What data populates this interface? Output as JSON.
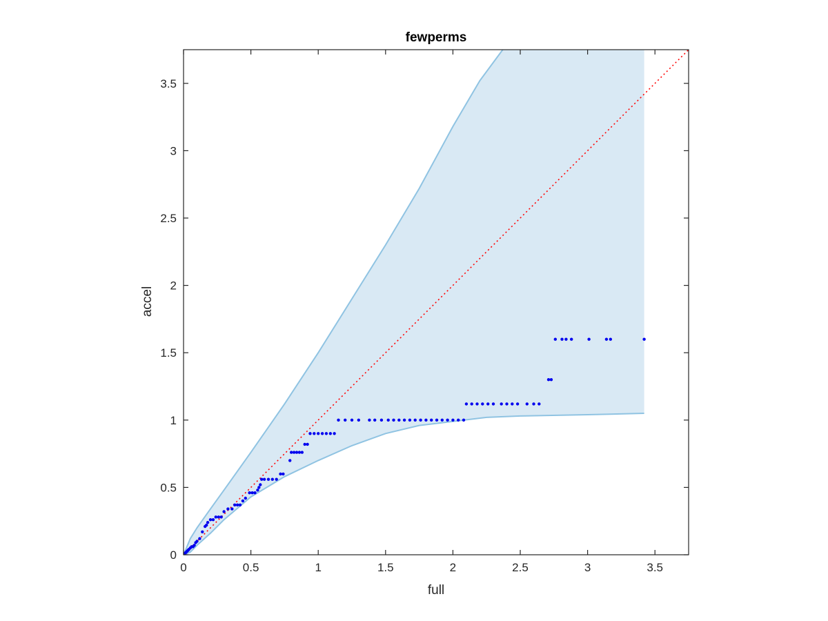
{
  "chart_data": {
    "type": "scatter",
    "title": "fewperms",
    "xlabel": "full",
    "ylabel": "accel",
    "xlim": [
      0,
      3.75
    ],
    "ylim": [
      0,
      3.75
    ],
    "xticks": [
      0,
      0.5,
      1,
      1.5,
      2,
      2.5,
      3,
      3.5
    ],
    "yticks": [
      0,
      0.5,
      1,
      1.5,
      2,
      2.5,
      3,
      3.5
    ],
    "xtick_labels": [
      "0",
      "0.5",
      "1",
      "1.5",
      "2",
      "2.5",
      "3",
      "3.5"
    ],
    "ytick_labels": [
      "0",
      "0.5",
      "1",
      "1.5",
      "2",
      "2.5",
      "3",
      "3.5"
    ],
    "grid": false,
    "colors": {
      "points": "#0000ee",
      "band_fill": "#d9e9f4",
      "band_edge": "#8fc3e2",
      "identity_line": "#ff0000",
      "axes": "#262626"
    },
    "band": {
      "upper": [
        [
          0,
          0
        ],
        [
          0.05,
          0.12
        ],
        [
          0.1,
          0.2
        ],
        [
          0.2,
          0.34
        ],
        [
          0.3,
          0.48
        ],
        [
          0.5,
          0.76
        ],
        [
          0.75,
          1.12
        ],
        [
          1,
          1.5
        ],
        [
          1.25,
          1.9
        ],
        [
          1.5,
          2.3
        ],
        [
          1.75,
          2.72
        ],
        [
          2,
          3.18
        ],
        [
          2.2,
          3.52
        ],
        [
          2.37,
          3.75
        ],
        [
          3.42,
          3.75
        ]
      ],
      "lower": [
        [
          0,
          0
        ],
        [
          0.05,
          0.02
        ],
        [
          0.1,
          0.07
        ],
        [
          0.2,
          0.16
        ],
        [
          0.3,
          0.26
        ],
        [
          0.5,
          0.43
        ],
        [
          0.75,
          0.58
        ],
        [
          1,
          0.7
        ],
        [
          1.25,
          0.81
        ],
        [
          1.5,
          0.9
        ],
        [
          1.75,
          0.96
        ],
        [
          2,
          0.99
        ],
        [
          2.25,
          1.02
        ],
        [
          2.5,
          1.03
        ],
        [
          3,
          1.04
        ],
        [
          3.42,
          1.05
        ]
      ]
    },
    "identity_line": [
      [
        0,
        0
      ],
      [
        3.75,
        3.75
      ]
    ],
    "series": [
      {
        "points": [
          [
            0.003,
            0.003
          ],
          [
            0.006,
            0.006
          ],
          [
            0.01,
            0.01
          ],
          [
            0.015,
            0.015
          ],
          [
            0.02,
            0.02
          ],
          [
            0.025,
            0.025
          ],
          [
            0.03,
            0.03
          ],
          [
            0.035,
            0.035
          ],
          [
            0.04,
            0.04
          ],
          [
            0.05,
            0.05
          ],
          [
            0.06,
            0.06
          ],
          [
            0.07,
            0.06
          ],
          [
            0.08,
            0.07
          ],
          [
            0.09,
            0.09
          ],
          [
            0.1,
            0.1
          ],
          [
            0.12,
            0.12
          ],
          [
            0.14,
            0.17
          ],
          [
            0.16,
            0.21
          ],
          [
            0.17,
            0.22
          ],
          [
            0.18,
            0.24
          ],
          [
            0.2,
            0.26
          ],
          [
            0.22,
            0.26
          ],
          [
            0.24,
            0.28
          ],
          [
            0.26,
            0.28
          ],
          [
            0.28,
            0.28
          ],
          [
            0.3,
            0.32
          ],
          [
            0.33,
            0.34
          ],
          [
            0.36,
            0.34
          ],
          [
            0.38,
            0.37
          ],
          [
            0.4,
            0.37
          ],
          [
            0.42,
            0.37
          ],
          [
            0.44,
            0.4
          ],
          [
            0.46,
            0.42
          ],
          [
            0.49,
            0.46
          ],
          [
            0.51,
            0.46
          ],
          [
            0.53,
            0.46
          ],
          [
            0.55,
            0.48
          ],
          [
            0.56,
            0.5
          ],
          [
            0.57,
            0.52
          ],
          [
            0.58,
            0.56
          ],
          [
            0.6,
            0.56
          ],
          [
            0.63,
            0.56
          ],
          [
            0.66,
            0.56
          ],
          [
            0.69,
            0.56
          ],
          [
            0.72,
            0.6
          ],
          [
            0.74,
            0.6
          ],
          [
            0.79,
            0.7
          ],
          [
            0.8,
            0.76
          ],
          [
            0.82,
            0.76
          ],
          [
            0.84,
            0.76
          ],
          [
            0.86,
            0.76
          ],
          [
            0.88,
            0.76
          ],
          [
            0.9,
            0.82
          ],
          [
            0.92,
            0.82
          ],
          [
            0.94,
            0.9
          ],
          [
            0.97,
            0.9
          ],
          [
            1,
            0.9
          ],
          [
            1.03,
            0.9
          ],
          [
            1.06,
            0.9
          ],
          [
            1.09,
            0.9
          ],
          [
            1.12,
            0.9
          ],
          [
            1.15,
            1
          ],
          [
            1.2,
            1
          ],
          [
            1.25,
            1
          ],
          [
            1.3,
            1
          ],
          [
            1.38,
            1
          ],
          [
            1.42,
            1
          ],
          [
            1.47,
            1
          ],
          [
            1.52,
            1
          ],
          [
            1.56,
            1
          ],
          [
            1.6,
            1
          ],
          [
            1.64,
            1
          ],
          [
            1.68,
            1
          ],
          [
            1.72,
            1
          ],
          [
            1.76,
            1
          ],
          [
            1.8,
            1
          ],
          [
            1.84,
            1
          ],
          [
            1.88,
            1
          ],
          [
            1.92,
            1
          ],
          [
            1.96,
            1
          ],
          [
            2,
            1
          ],
          [
            2.04,
            1
          ],
          [
            2.08,
            1
          ],
          [
            2.1,
            1.12
          ],
          [
            2.14,
            1.12
          ],
          [
            2.18,
            1.12
          ],
          [
            2.22,
            1.12
          ],
          [
            2.26,
            1.12
          ],
          [
            2.3,
            1.12
          ],
          [
            2.36,
            1.12
          ],
          [
            2.4,
            1.12
          ],
          [
            2.44,
            1.12
          ],
          [
            2.48,
            1.12
          ],
          [
            2.55,
            1.12
          ],
          [
            2.6,
            1.12
          ],
          [
            2.64,
            1.12
          ],
          [
            2.71,
            1.3
          ],
          [
            2.73,
            1.3
          ],
          [
            2.76,
            1.6
          ],
          [
            2.81,
            1.6
          ],
          [
            2.84,
            1.6
          ],
          [
            2.88,
            1.6
          ],
          [
            3.01,
            1.6
          ],
          [
            3.14,
            1.6
          ],
          [
            3.17,
            1.6
          ],
          [
            3.42,
            1.6
          ]
        ]
      }
    ]
  }
}
